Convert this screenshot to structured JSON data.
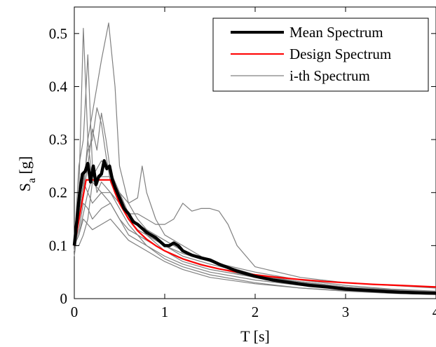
{
  "chart_data": {
    "type": "line",
    "xlabel": "T [s]",
    "ylabel": {
      "main": "S",
      "subscript": "a",
      "suffix": " [g]"
    },
    "xlim": [
      0,
      4
    ],
    "ylim": [
      0,
      0.55
    ],
    "x_ticks": [
      0,
      1,
      2,
      3,
      4
    ],
    "x_tick_labels": [
      "0",
      "1",
      "2",
      "3",
      "4"
    ],
    "y_ticks": [
      0,
      0.1,
      0.2,
      0.3,
      0.4,
      0.5
    ],
    "y_tick_labels": [
      "0",
      "0.1",
      "0.2",
      "0.3",
      "0.4",
      "0.5"
    ],
    "grid": false,
    "legend_position": "top-right",
    "legend": [
      {
        "label": "Mean Spectrum",
        "color": "#000000",
        "width": "thick"
      },
      {
        "label": "Design Spectrum",
        "color": "#ff0000",
        "width": "medium"
      },
      {
        "label": "i-th Spectrum",
        "color": "#808080",
        "width": "thin"
      }
    ],
    "series": [
      {
        "name": "Mean Spectrum",
        "color": "#000000",
        "x": [
          0,
          0.03,
          0.06,
          0.09,
          0.12,
          0.15,
          0.18,
          0.21,
          0.24,
          0.27,
          0.3,
          0.33,
          0.36,
          0.39,
          0.42,
          0.45,
          0.5,
          0.55,
          0.6,
          0.65,
          0.7,
          0.8,
          0.9,
          1.0,
          1.05,
          1.1,
          1.15,
          1.2,
          1.3,
          1.4,
          1.5,
          1.6,
          1.8,
          2.0,
          2.2,
          2.4,
          2.6,
          2.8,
          3.0,
          3.2,
          3.4,
          3.6,
          3.8,
          4.0
        ],
        "y": [
          0.1,
          0.15,
          0.2,
          0.235,
          0.24,
          0.255,
          0.22,
          0.25,
          0.215,
          0.23,
          0.235,
          0.26,
          0.245,
          0.25,
          0.225,
          0.21,
          0.19,
          0.17,
          0.16,
          0.145,
          0.14,
          0.125,
          0.115,
          0.1,
          0.1,
          0.105,
          0.1,
          0.09,
          0.082,
          0.077,
          0.073,
          0.065,
          0.052,
          0.042,
          0.035,
          0.03,
          0.025,
          0.022,
          0.018,
          0.016,
          0.014,
          0.012,
          0.011,
          0.01
        ]
      },
      {
        "name": "Design Spectrum",
        "color": "#ff0000",
        "x": [
          0,
          0.13,
          0.2,
          0.3,
          0.4,
          0.45,
          0.5,
          0.6,
          0.7,
          0.8,
          0.9,
          1.0,
          1.2,
          1.4,
          1.6,
          1.8,
          2.0,
          2.2,
          2.5,
          2.8,
          3.0,
          3.3,
          3.6,
          4.0
        ],
        "y": [
          0.1,
          0.224,
          0.224,
          0.224,
          0.224,
          0.2,
          0.18,
          0.15,
          0.128,
          0.112,
          0.1,
          0.09,
          0.075,
          0.064,
          0.056,
          0.05,
          0.045,
          0.041,
          0.036,
          0.032,
          0.03,
          0.027,
          0.025,
          0.022
        ]
      },
      {
        "color": "#808080",
        "x": [
          0,
          0.05,
          0.1,
          0.15,
          0.2,
          0.3,
          0.4,
          0.5,
          0.6,
          0.7,
          0.8,
          0.9,
          1.0,
          1.2,
          1.5,
          2.0,
          2.5,
          3.0,
          3.5,
          4.0
        ],
        "y": [
          0.1,
          0.2,
          0.51,
          0.3,
          0.22,
          0.2,
          0.18,
          0.15,
          0.13,
          0.12,
          0.11,
          0.1,
          0.09,
          0.075,
          0.06,
          0.04,
          0.03,
          0.02,
          0.015,
          0.012
        ]
      },
      {
        "color": "#808080",
        "x": [
          0,
          0.05,
          0.1,
          0.15,
          0.2,
          0.3,
          0.38,
          0.45,
          0.5,
          0.6,
          0.7,
          0.8,
          0.9,
          1.0,
          1.2,
          1.5,
          2.0,
          2.5,
          3.0,
          3.5,
          4.0
        ],
        "y": [
          0.09,
          0.15,
          0.2,
          0.3,
          0.35,
          0.45,
          0.52,
          0.4,
          0.25,
          0.18,
          0.15,
          0.13,
          0.11,
          0.1,
          0.08,
          0.065,
          0.045,
          0.032,
          0.022,
          0.017,
          0.013
        ]
      },
      {
        "color": "#808080",
        "x": [
          0,
          0.05,
          0.1,
          0.15,
          0.2,
          0.25,
          0.3,
          0.4,
          0.5,
          0.6,
          0.7,
          0.8,
          1.0,
          1.2,
          1.5,
          2.0,
          2.5,
          3.0,
          3.5,
          4.0
        ],
        "y": [
          0.1,
          0.25,
          0.3,
          0.46,
          0.25,
          0.2,
          0.22,
          0.2,
          0.18,
          0.15,
          0.13,
          0.12,
          0.1,
          0.085,
          0.07,
          0.045,
          0.03,
          0.022,
          0.016,
          0.012
        ]
      },
      {
        "color": "#808080",
        "x": [
          0,
          0.05,
          0.1,
          0.15,
          0.2,
          0.25,
          0.3,
          0.35,
          0.4,
          0.5,
          0.6,
          0.7,
          0.8,
          1.0,
          1.2,
          1.5,
          2.0,
          2.5,
          3.0,
          3.5,
          4.0
        ],
        "y": [
          0.08,
          0.15,
          0.2,
          0.25,
          0.32,
          0.28,
          0.35,
          0.3,
          0.24,
          0.2,
          0.16,
          0.14,
          0.13,
          0.11,
          0.09,
          0.07,
          0.05,
          0.035,
          0.025,
          0.018,
          0.014
        ]
      },
      {
        "color": "#808080",
        "x": [
          0,
          0.05,
          0.1,
          0.15,
          0.2,
          0.25,
          0.3,
          0.35,
          0.4,
          0.5,
          0.6,
          0.7,
          0.8,
          0.9,
          1.0,
          1.1,
          1.2,
          1.3,
          1.4,
          1.5,
          1.6,
          1.7,
          1.8,
          2.0,
          2.5,
          3.0,
          3.5,
          4.0
        ],
        "y": [
          0.1,
          0.15,
          0.22,
          0.28,
          0.3,
          0.36,
          0.33,
          0.27,
          0.22,
          0.18,
          0.16,
          0.16,
          0.15,
          0.14,
          0.14,
          0.15,
          0.18,
          0.165,
          0.17,
          0.17,
          0.165,
          0.14,
          0.1,
          0.06,
          0.04,
          0.03,
          0.025,
          0.02
        ]
      },
      {
        "color": "#808080",
        "x": [
          0,
          0.05,
          0.1,
          0.15,
          0.2,
          0.3,
          0.4,
          0.5,
          0.6,
          0.7,
          0.75,
          0.8,
          0.9,
          1.0,
          1.2,
          1.5,
          2.0,
          2.5,
          3.0,
          3.5,
          4.0
        ],
        "y": [
          0.1,
          0.12,
          0.16,
          0.2,
          0.23,
          0.26,
          0.24,
          0.2,
          0.18,
          0.19,
          0.25,
          0.2,
          0.15,
          0.12,
          0.1,
          0.07,
          0.045,
          0.032,
          0.022,
          0.016,
          0.012
        ]
      },
      {
        "color": "#808080",
        "x": [
          0,
          0.05,
          0.1,
          0.15,
          0.2,
          0.3,
          0.4,
          0.5,
          0.6,
          0.7,
          0.8,
          1.0,
          1.2,
          1.5,
          2.0,
          2.5,
          3.0,
          3.5,
          4.0
        ],
        "y": [
          0.1,
          0.1,
          0.12,
          0.15,
          0.22,
          0.23,
          0.23,
          0.2,
          0.16,
          0.14,
          0.12,
          0.09,
          0.07,
          0.055,
          0.04,
          0.03,
          0.022,
          0.016,
          0.012
        ]
      },
      {
        "color": "#808080",
        "x": [
          0,
          0.05,
          0.1,
          0.15,
          0.2,
          0.3,
          0.4,
          0.5,
          0.6,
          0.7,
          0.8,
          1.0,
          1.2,
          1.5,
          2.0,
          2.5,
          3.0,
          3.5,
          4.0
        ],
        "y": [
          0.1,
          0.15,
          0.22,
          0.2,
          0.18,
          0.2,
          0.2,
          0.17,
          0.14,
          0.12,
          0.1,
          0.08,
          0.065,
          0.05,
          0.035,
          0.025,
          0.018,
          0.013,
          0.01
        ]
      },
      {
        "color": "#808080",
        "x": [
          0,
          0.05,
          0.1,
          0.15,
          0.2,
          0.3,
          0.4,
          0.5,
          0.6,
          0.8,
          1.0,
          1.2,
          1.5,
          2.0,
          2.5,
          3.0,
          3.5,
          4.0
        ],
        "y": [
          0.1,
          0.13,
          0.18,
          0.17,
          0.15,
          0.17,
          0.18,
          0.15,
          0.12,
          0.1,
          0.075,
          0.06,
          0.045,
          0.03,
          0.02,
          0.015,
          0.01,
          0.008
        ]
      },
      {
        "color": "#808080",
        "x": [
          0,
          0.05,
          0.1,
          0.15,
          0.2,
          0.3,
          0.4,
          0.5,
          0.6,
          0.8,
          1.0,
          1.2,
          1.5,
          2.0,
          2.5,
          3.0,
          3.5,
          4.0
        ],
        "y": [
          0.1,
          0.12,
          0.15,
          0.14,
          0.13,
          0.14,
          0.15,
          0.13,
          0.11,
          0.09,
          0.07,
          0.055,
          0.04,
          0.028,
          0.02,
          0.014,
          0.01,
          0.008
        ]
      }
    ]
  }
}
